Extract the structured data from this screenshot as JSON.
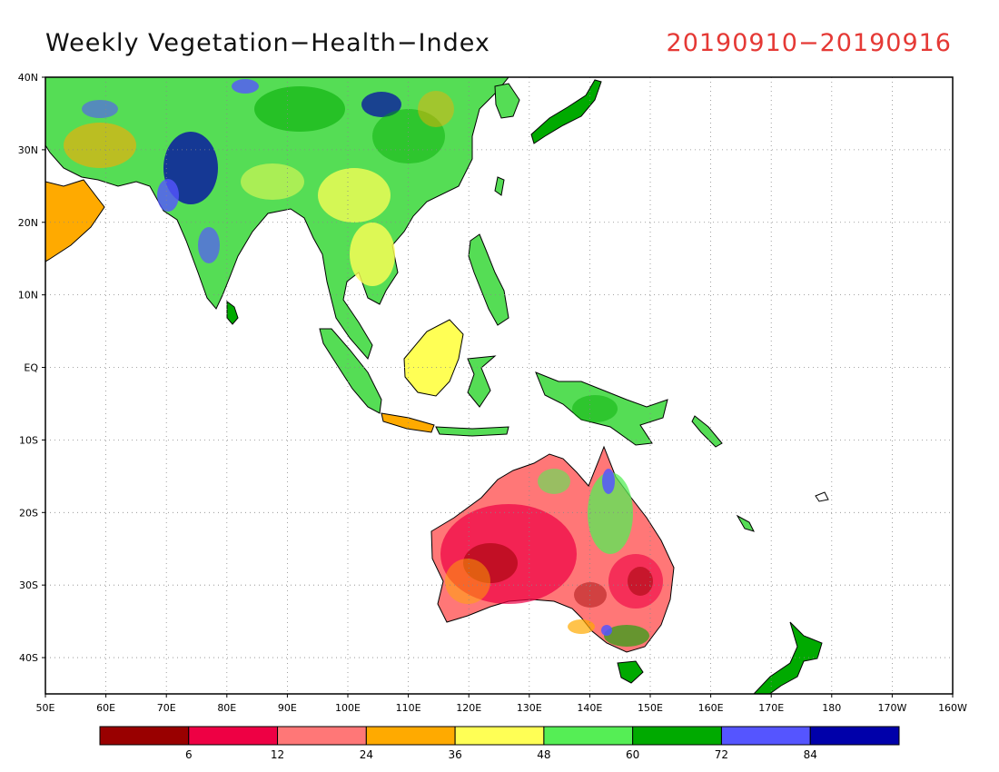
{
  "map": {
    "title": "Weekly Vegetation−Health−Index",
    "date_range": "20190910−20190916",
    "extent": {
      "lon": [
        50,
        200
      ],
      "lat": [
        -45,
        40
      ]
    },
    "lat_ticks": [
      {
        "value": 40,
        "label": "40N"
      },
      {
        "value": 30,
        "label": "30N"
      },
      {
        "value": 20,
        "label": "20N"
      },
      {
        "value": 10,
        "label": "10N"
      },
      {
        "value": 0,
        "label": "EQ"
      },
      {
        "value": -10,
        "label": "10S"
      },
      {
        "value": -20,
        "label": "20S"
      },
      {
        "value": -30,
        "label": "30S"
      },
      {
        "value": -40,
        "label": "40S"
      }
    ],
    "lon_ticks": [
      {
        "value": 50,
        "label": "50E"
      },
      {
        "value": 60,
        "label": "60E"
      },
      {
        "value": 70,
        "label": "70E"
      },
      {
        "value": 80,
        "label": "80E"
      },
      {
        "value": 90,
        "label": "90E"
      },
      {
        "value": 100,
        "label": "100E"
      },
      {
        "value": 110,
        "label": "110E"
      },
      {
        "value": 120,
        "label": "120E"
      },
      {
        "value": 130,
        "label": "130E"
      },
      {
        "value": 140,
        "label": "140E"
      },
      {
        "value": 150,
        "label": "150E"
      },
      {
        "value": 160,
        "label": "160E"
      },
      {
        "value": 170,
        "label": "170E"
      },
      {
        "value": 180,
        "label": "180"
      },
      {
        "value": 190,
        "label": "170W"
      },
      {
        "value": 200,
        "label": "160W"
      }
    ],
    "grid": "dotted",
    "colorbar": {
      "colors": [
        "#990000",
        "#ee0044",
        "#ff7777",
        "#ffaa00",
        "#ffff55",
        "#55ee55",
        "#00aa00",
        "#5555ff",
        "#0000aa"
      ],
      "labels": [
        "6",
        "12",
        "24",
        "36",
        "48",
        "60",
        "72",
        "84"
      ]
    }
  }
}
